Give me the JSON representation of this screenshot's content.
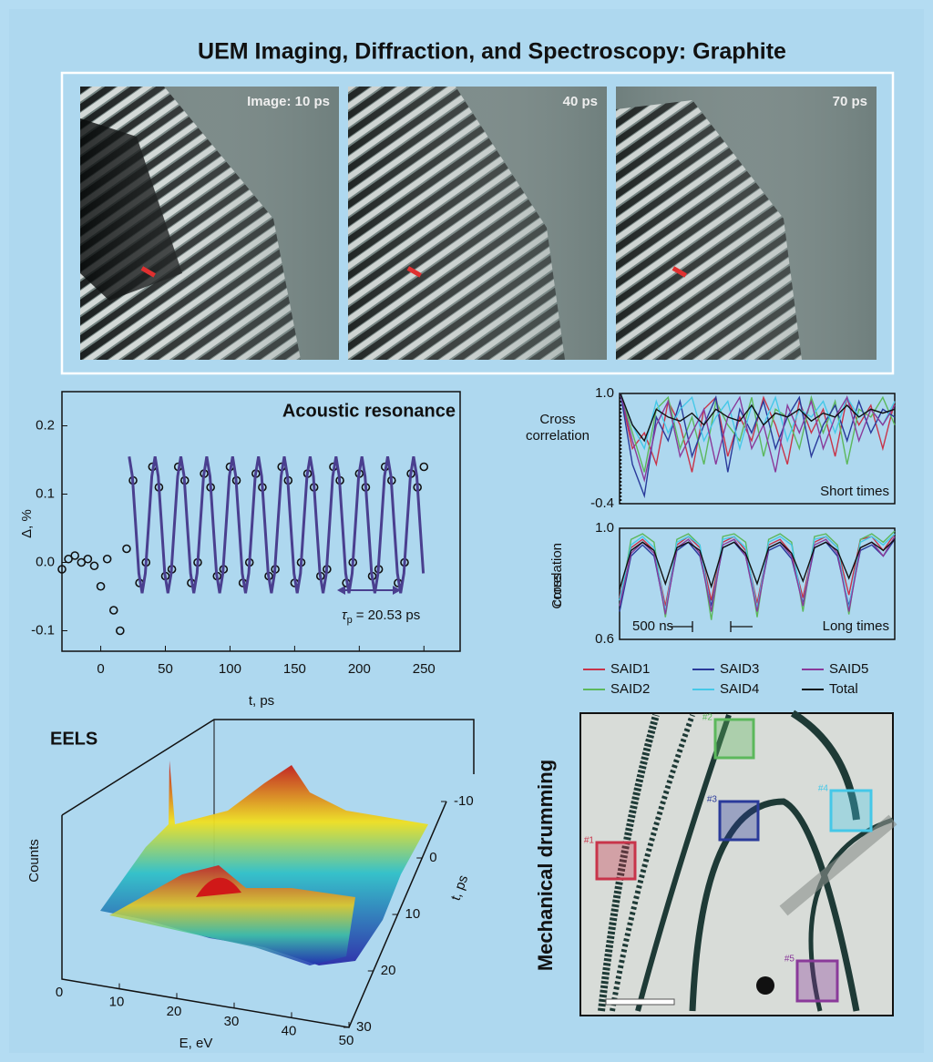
{
  "title": "UEM Imaging, Diffraction, and Spectroscopy: Graphite",
  "images": [
    {
      "label": "Image: 10 ps"
    },
    {
      "label": "40 ps"
    },
    {
      "label": "70 ps"
    }
  ],
  "chart_data": [
    {
      "type": "line",
      "title": "Acoustic resonance",
      "x_label": "t, ps",
      "y_label": "Δ, %",
      "annotation": {
        "symbol": "τ",
        "subscript": "p",
        "text": "= 20.53 ps"
      },
      "xlim": [
        -30,
        278
      ],
      "xticks": [
        0,
        50,
        100,
        150,
        200,
        250
      ],
      "ylim": [
        -0.13,
        0.25
      ],
      "yticks": [
        -0.1,
        {
          "value": 0,
          "label": "0.0"
        },
        0.1,
        0.2
      ],
      "series": [
        {
          "marker": "circle",
          "color": "#111111",
          "x": [
            -30,
            -25,
            -20,
            -15,
            -10,
            -5,
            0,
            5,
            10,
            15,
            20,
            25,
            30,
            35,
            40,
            45,
            50,
            55,
            60,
            65,
            70,
            75,
            80,
            85,
            90,
            95,
            100,
            105,
            110,
            115,
            120,
            125,
            130,
            135,
            140,
            145,
            150,
            155,
            160,
            165,
            170,
            175,
            180,
            185,
            190,
            195,
            200,
            205,
            210,
            215,
            220,
            225,
            230,
            235,
            240,
            245,
            250
          ],
          "values": [
            -0.01,
            0.005,
            0.01,
            0.0,
            0.005,
            -0.005,
            -0.035,
            0.005,
            -0.07,
            -0.1,
            0.02,
            0.12,
            -0.03,
            0.0,
            0.14,
            0.11,
            -0.02,
            -0.01,
            0.14,
            0.12,
            -0.03,
            0.0,
            0.13,
            0.11,
            -0.02,
            -0.01,
            0.14,
            0.12,
            -0.03,
            0.0,
            0.13,
            0.11,
            -0.02,
            -0.01,
            0.14,
            0.12,
            -0.03,
            0.0,
            0.13,
            0.11,
            -0.02,
            -0.01,
            0.14,
            0.12,
            -0.03,
            0.0,
            0.13,
            0.11,
            -0.02,
            -0.01,
            0.14,
            0.12,
            -0.03,
            0.0,
            0.13,
            0.11,
            0.14
          ]
        },
        {
          "marker": "line",
          "color": "#4a3f8f",
          "x": [
            22,
            24.5,
            27,
            29.5,
            32,
            34.5,
            37,
            39.5,
            42,
            44.5,
            47,
            49.5,
            52,
            54.5,
            57,
            59.5,
            62,
            64.5,
            67,
            69.5,
            72,
            74.5,
            77,
            79.5,
            82,
            84.5,
            87,
            89.5,
            92,
            94.5,
            97,
            99.5,
            102,
            104.5,
            107,
            109.5,
            112,
            114.5,
            117,
            119.5,
            122,
            124.5,
            127,
            129.5,
            132,
            134.5,
            137,
            139.5,
            142,
            144.5,
            147,
            149.5,
            152,
            154.5,
            157,
            159.5,
            162,
            164.5,
            167,
            169.5,
            172,
            174.5,
            177,
            179.5,
            182,
            184.5,
            187,
            189.5,
            192,
            194.5,
            197,
            199.5,
            202,
            204.5,
            207,
            209.5,
            212,
            214.5,
            217,
            219.5,
            222,
            224.5,
            227,
            229.5,
            232,
            234.5,
            237,
            239.5,
            242,
            244.5,
            247,
            249.5
          ],
          "values": [
            0.155,
            0.126,
            0.055,
            -0.016,
            -0.045,
            -0.016,
            0.055,
            0.126,
            0.155,
            0.126,
            0.055,
            -0.016,
            -0.045,
            -0.016,
            0.055,
            0.126,
            0.155,
            0.126,
            0.055,
            -0.016,
            -0.045,
            -0.016,
            0.055,
            0.126,
            0.155,
            0.126,
            0.055,
            -0.016,
            -0.045,
            -0.016,
            0.055,
            0.126,
            0.155,
            0.126,
            0.055,
            -0.016,
            -0.045,
            -0.016,
            0.055,
            0.126,
            0.155,
            0.126,
            0.055,
            -0.016,
            -0.045,
            -0.016,
            0.055,
            0.126,
            0.155,
            0.126,
            0.055,
            -0.016,
            -0.045,
            -0.016,
            0.055,
            0.126,
            0.155,
            0.126,
            0.055,
            -0.016,
            -0.045,
            -0.016,
            0.055,
            0.126,
            0.155,
            0.126,
            0.055,
            -0.016,
            -0.045,
            -0.016,
            0.055,
            0.126,
            0.155,
            0.126,
            0.055,
            -0.016,
            -0.045,
            -0.016,
            0.055,
            0.126,
            0.155,
            0.126,
            0.055,
            -0.016,
            -0.045,
            -0.016,
            0.055,
            0.126,
            0.155,
            0.126,
            0.055,
            -0.016
          ]
        }
      ]
    },
    {
      "type": "cross",
      "y_label": [
        "Cross",
        "correlation"
      ],
      "annotation": "Short times",
      "ylim": [
        -0.4,
        1.0
      ],
      "yticks": [
        {
          "value": 1.0,
          "label": "1.0"
        },
        -0.4
      ],
      "categories": [
        null,
        null,
        null,
        null,
        null,
        null,
        null,
        null,
        null,
        null,
        null,
        null,
        null,
        null,
        null,
        null,
        null,
        null,
        null,
        null,
        null,
        null,
        null,
        null
      ],
      "series": [
        {
          "color": "#c8344a",
          "values": [
            1.0,
            0.3,
            0.5,
            0.1,
            0.9,
            0.6,
            0.0,
            0.8,
            0.95,
            0.2,
            0.7,
            0.4,
            0.95,
            0.6,
            0.1,
            0.9,
            0.5,
            0.8,
            0.2,
            0.95,
            0.6,
            0.85,
            0.3,
            0.9
          ]
        },
        {
          "color": "#5cb85c",
          "values": [
            1.0,
            0.5,
            0.0,
            0.8,
            0.95,
            0.3,
            0.7,
            0.1,
            0.9,
            0.6,
            0.4,
            0.95,
            0.2,
            0.8,
            0.7,
            0.3,
            0.95,
            0.5,
            0.9,
            0.1,
            0.8,
            0.7,
            0.95,
            0.6
          ]
        },
        {
          "color": "#2a3a9a",
          "values": [
            1.0,
            0.1,
            -0.3,
            0.7,
            0.4,
            0.9,
            0.2,
            0.6,
            0.95,
            0.0,
            0.8,
            0.5,
            0.9,
            0.3,
            0.7,
            0.95,
            0.2,
            0.6,
            0.85,
            0.4,
            0.9,
            0.5,
            0.8,
            0.7
          ]
        },
        {
          "color": "#45c8e8",
          "values": [
            1.0,
            0.6,
            0.3,
            0.9,
            0.5,
            0.8,
            0.95,
            0.4,
            0.7,
            0.9,
            0.3,
            0.85,
            0.6,
            0.95,
            0.4,
            0.8,
            0.7,
            0.9,
            0.5,
            0.95,
            0.7,
            0.8,
            0.6,
            0.9
          ]
        },
        {
          "color": "#8a3a9a",
          "values": [
            1.0,
            0.4,
            -0.1,
            0.6,
            0.9,
            0.2,
            0.5,
            0.8,
            0.1,
            0.7,
            0.95,
            0.3,
            0.6,
            0.0,
            0.85,
            0.5,
            0.9,
            0.3,
            0.7,
            0.95,
            0.4,
            0.8,
            0.6,
            0.85
          ]
        },
        {
          "color": "#111111",
          "values": [
            1.0,
            0.6,
            0.4,
            0.8,
            0.7,
            0.65,
            0.75,
            0.6,
            0.8,
            0.7,
            0.65,
            0.85,
            0.6,
            0.75,
            0.7,
            0.8,
            0.65,
            0.75,
            0.7,
            0.85,
            0.7,
            0.8,
            0.75,
            0.8
          ]
        }
      ]
    },
    {
      "type": "cross",
      "y_label": [
        "Cross",
        "correlation"
      ],
      "annotation": "Long times",
      "scale_label": "500 ns",
      "ylim": [
        0.6,
        1.0
      ],
      "yticks": [
        {
          "value": 1.0,
          "label": "1.0"
        },
        0.6
      ],
      "legend": "below",
      "categories": [
        null,
        null,
        null,
        null,
        null,
        null,
        null,
        null,
        null,
        null,
        null,
        null,
        null,
        null,
        null,
        null,
        null,
        null,
        null,
        null,
        null,
        null,
        null,
        null,
        null
      ],
      "series": [
        {
          "name": "SAID1",
          "color": "#c8344a",
          "values": [
            0.75,
            0.93,
            0.96,
            0.92,
            0.72,
            0.94,
            0.97,
            0.93,
            0.74,
            0.95,
            0.97,
            0.92,
            0.73,
            0.94,
            0.96,
            0.91,
            0.75,
            0.95,
            0.97,
            0.93,
            0.76,
            0.96,
            0.97,
            0.92,
            0.98
          ]
        },
        {
          "name": "SAID2",
          "color": "#5cb85c",
          "values": [
            0.72,
            0.96,
            0.98,
            0.95,
            0.68,
            0.96,
            0.98,
            0.94,
            0.67,
            0.97,
            0.98,
            0.95,
            0.68,
            0.96,
            0.98,
            0.95,
            0.7,
            0.97,
            0.98,
            0.94,
            0.69,
            0.96,
            0.98,
            0.95,
            0.99
          ]
        },
        {
          "name": "SAID3",
          "color": "#2a3a9a",
          "values": [
            0.7,
            0.9,
            0.94,
            0.9,
            0.7,
            0.92,
            0.95,
            0.9,
            0.72,
            0.93,
            0.95,
            0.9,
            0.71,
            0.92,
            0.94,
            0.89,
            0.73,
            0.93,
            0.95,
            0.9,
            0.72,
            0.92,
            0.94,
            0.9,
            0.96
          ]
        },
        {
          "name": "SAID4",
          "color": "#45c8e8",
          "values": [
            0.74,
            0.94,
            0.97,
            0.93,
            0.7,
            0.95,
            0.97,
            0.94,
            0.7,
            0.96,
            0.97,
            0.93,
            0.71,
            0.95,
            0.97,
            0.94,
            0.72,
            0.96,
            0.97,
            0.93,
            0.71,
            0.95,
            0.97,
            0.94,
            0.98
          ]
        },
        {
          "name": "SAID5",
          "color": "#8a3a9a",
          "values": [
            0.72,
            0.91,
            0.95,
            0.91,
            0.69,
            0.93,
            0.96,
            0.91,
            0.7,
            0.94,
            0.96,
            0.9,
            0.7,
            0.93,
            0.95,
            0.9,
            0.72,
            0.94,
            0.96,
            0.91,
            0.7,
            0.93,
            0.95,
            0.9,
            0.97
          ]
        },
        {
          "name": "Total",
          "color": "#111111",
          "values": [
            0.78,
            0.92,
            0.95,
            0.92,
            0.8,
            0.93,
            0.95,
            0.92,
            0.79,
            0.93,
            0.95,
            0.91,
            0.8,
            0.93,
            0.95,
            0.91,
            0.81,
            0.93,
            0.95,
            0.92,
            0.82,
            0.93,
            0.95,
            0.92,
            0.96
          ]
        }
      ]
    },
    {
      "type": "surface3d",
      "title": "EELS",
      "x_label": "E, eV",
      "y_label": "t, ps",
      "z_label": "Counts",
      "xlim": [
        0,
        50
      ],
      "xticks": [
        0,
        10,
        20,
        30,
        40,
        50
      ],
      "ylim": [
        -10,
        30
      ],
      "yticks": [
        -10,
        0,
        10,
        20,
        30
      ]
    }
  ],
  "drumming": {
    "title": "Mechanical drumming",
    "regions": [
      "#1",
      "#2",
      "#3",
      "#4",
      "#5"
    ]
  }
}
